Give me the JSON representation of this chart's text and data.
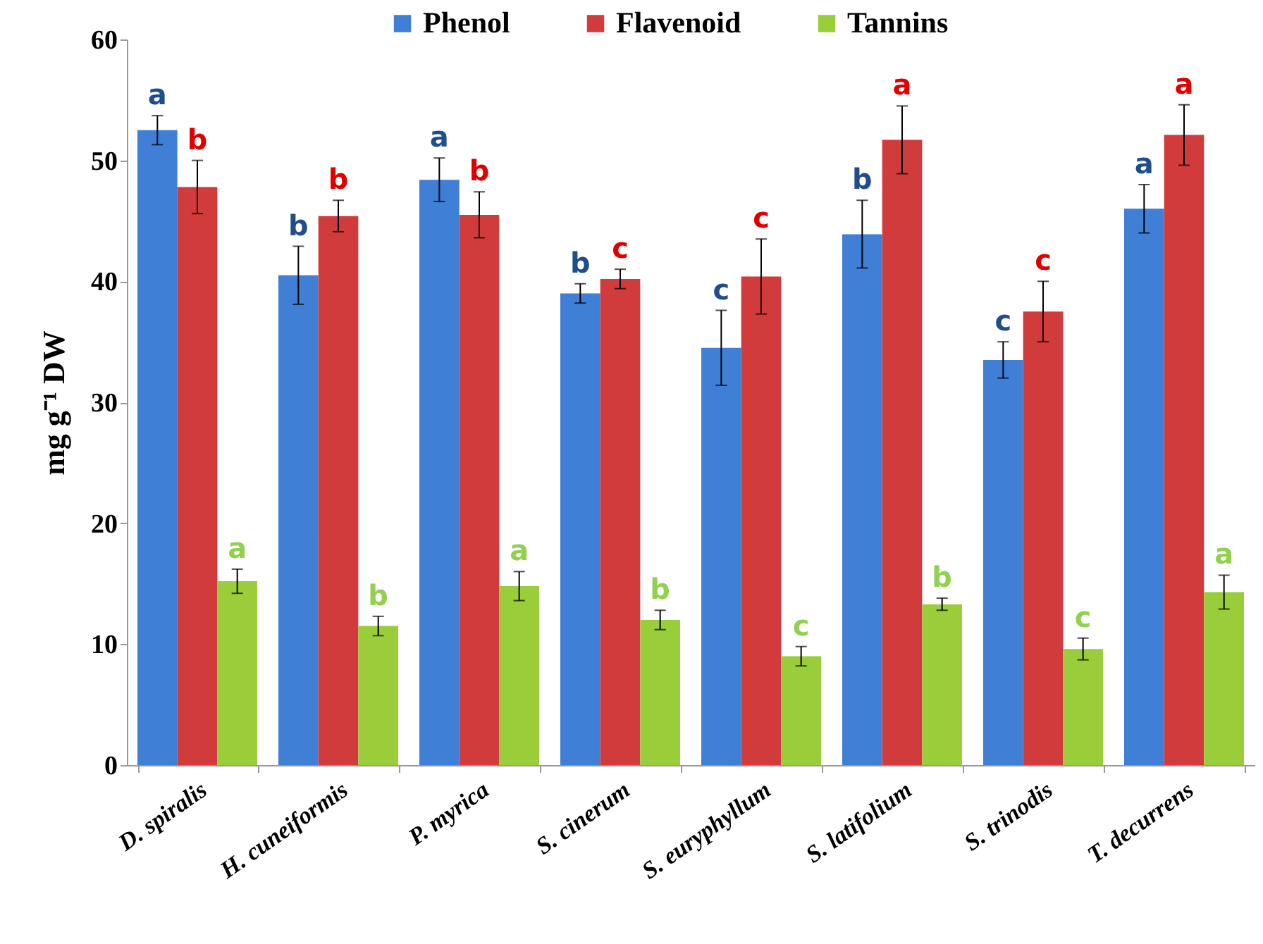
{
  "chart_data": {
    "type": "bar",
    "ylabel": "mg g⁻¹ DW",
    "categories": [
      "D. spiralis",
      "H. cuneiformis",
      "P. myrica",
      "S. cinerum",
      "S. euryphyllum",
      "S. latifolium",
      "S. trinodis",
      "T. decurrens"
    ],
    "series": [
      {
        "name": "Phenol",
        "color": "#3f7fd6",
        "values": [
          52.5,
          40.5,
          48.4,
          39.0,
          34.5,
          43.9,
          33.5,
          46.0
        ],
        "errors": [
          1.2,
          2.4,
          1.8,
          0.8,
          3.1,
          2.8,
          1.5,
          2.0
        ],
        "value_labels": [
          "a",
          "b",
          "a",
          "b",
          "c",
          "b",
          "c",
          "a"
        ]
      },
      {
        "name": "Flavenoid",
        "color": "#d23b3b",
        "values": [
          47.8,
          45.4,
          45.5,
          40.2,
          40.4,
          51.7,
          37.5,
          52.1
        ],
        "errors": [
          2.2,
          1.3,
          1.9,
          0.8,
          3.1,
          2.8,
          2.5,
          2.5
        ],
        "value_labels": [
          "b",
          "b",
          "b",
          "c",
          "c",
          "a",
          "c",
          "a"
        ]
      },
      {
        "name": "Tannins",
        "color": "#9acd3a",
        "values": [
          15.2,
          11.5,
          14.8,
          12.0,
          9.0,
          13.3,
          9.6,
          14.3
        ],
        "errors": [
          1.0,
          0.8,
          1.2,
          0.8,
          0.8,
          0.5,
          0.9,
          1.4
        ],
        "value_labels": [
          "a",
          "b",
          "a",
          "b",
          "c",
          "b",
          "c",
          "a"
        ]
      }
    ],
    "ylim": [
      0,
      60
    ],
    "yticks": [
      0,
      10,
      20,
      30,
      40,
      50,
      60
    ],
    "grid": false,
    "legend": "top"
  }
}
